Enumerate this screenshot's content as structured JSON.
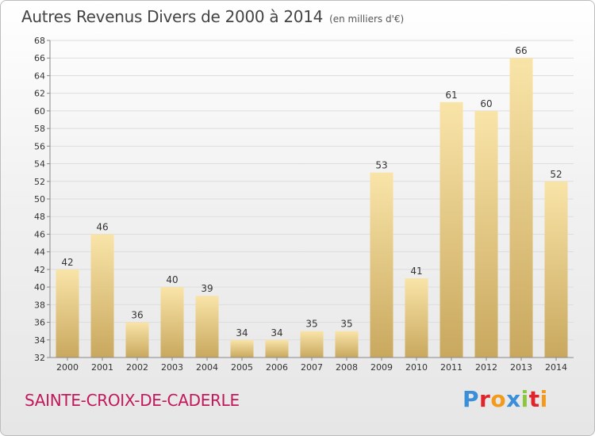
{
  "header": {
    "title": "Autres Revenus Divers de 2000 à 2014",
    "unit": "(en milliers d'€)"
  },
  "footer": {
    "commune": "SAINTE-CROIX-DE-CADERLE",
    "logo_text": "Proxiti",
    "logo_colors": [
      "#3a8fd8",
      "#e0242c",
      "#f39a1c",
      "#3a8fd8",
      "#8cc63f",
      "#e0242c",
      "#f39a1c"
    ]
  },
  "colors": {
    "bar_light": "#f9e4a8",
    "bar_dark": "#c9a85e",
    "commune_text": "#c2185b",
    "grid": "#dddddd",
    "axis": "#888888"
  },
  "chart_data": {
    "type": "bar",
    "categories": [
      "2000",
      "2001",
      "2002",
      "2003",
      "2004",
      "2005",
      "2006",
      "2007",
      "2008",
      "2009",
      "2010",
      "2011",
      "2012",
      "2013",
      "2014"
    ],
    "values": [
      42,
      46,
      36,
      40,
      39,
      34,
      34,
      35,
      35,
      53,
      41,
      61,
      60,
      66,
      52
    ],
    "title": "Autres Revenus Divers de 2000 à 2014",
    "subtitle": "(en milliers d'€)",
    "xlabel": "",
    "ylabel": "",
    "ylim": [
      32,
      68
    ],
    "yticks": [
      32,
      34,
      36,
      38,
      40,
      42,
      44,
      46,
      48,
      50,
      52,
      54,
      56,
      58,
      60,
      62,
      64,
      66,
      68
    ],
    "data_labels": true,
    "grid": true,
    "legend": "none"
  }
}
